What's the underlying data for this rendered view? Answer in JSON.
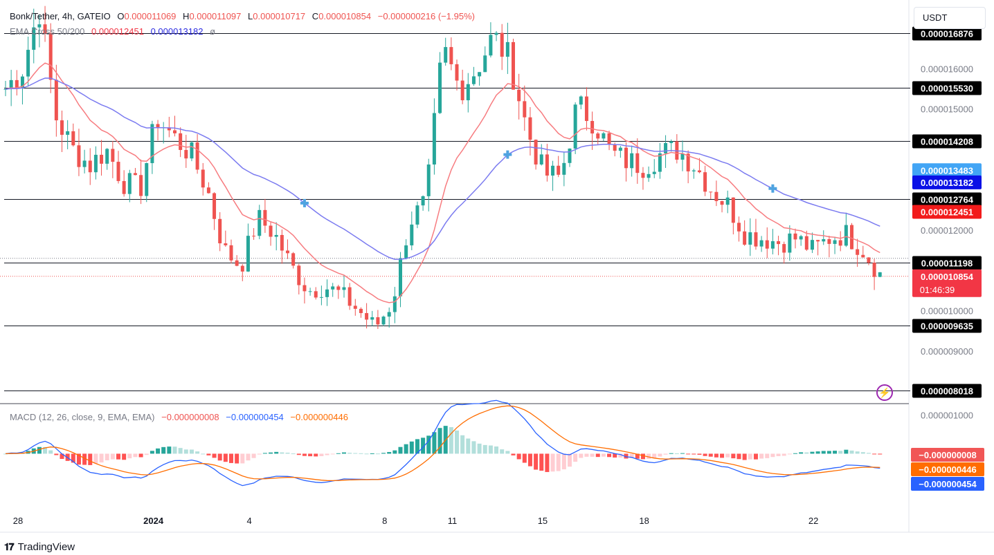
{
  "header": {
    "symbol": "Bonk/Tether, 4h, GATEIO",
    "open_label": "O",
    "open": "0.000011069",
    "high_label": "H",
    "high": "0.000011097",
    "low_label": "L",
    "low": "0.000010717",
    "close_label": "C",
    "close": "0.000010854",
    "change": "−0.000000216 (−1.95%)",
    "ema_label": "EMA Cross 50/200",
    "ema50": "0.000012451",
    "ema200": "0.000013182",
    "ema_extra": "ø",
    "currency": "USDT"
  },
  "macd_legend": {
    "label": "MACD (12, 26, close, 9, EMA, EMA)",
    "hist": "−0.000000008",
    "macd": "−0.000000454",
    "signal": "−0.000000446"
  },
  "brand": "TradingView",
  "colors": {
    "up": "#26a69a",
    "down": "#ef5350",
    "ema50": "#f77c80",
    "ema200": "#7b7bf0",
    "macd": "#2962ff",
    "signal": "#ff6d00"
  },
  "chart_data": {
    "type": "candlestick",
    "price_axis_ticks": [
      "0.000016000",
      "0.000015000",
      "0.000012000",
      "0.000010000",
      "0.000009000"
    ],
    "price_axis_values": [
      1.6e-05,
      1.5e-05,
      1.2e-05,
      1e-05,
      9e-06
    ],
    "price_range": [
      7.7e-06,
      1.77e-05
    ],
    "horizontal_levels": [
      {
        "label": "0.000016876",
        "value": 1.6876e-05
      },
      {
        "label": "0.000015530",
        "value": 1.553e-05
      },
      {
        "label": "0.000014208",
        "value": 1.4208e-05
      },
      {
        "label": "0.000012764",
        "value": 1.2764e-05
      },
      {
        "label": "0.000011198",
        "value": 1.1198e-05
      },
      {
        "label": "0.000009635",
        "value": 9.635e-06
      },
      {
        "label": "0.000008018",
        "value": 8.018e-06
      }
    ],
    "price_labels": [
      {
        "label": "0.000013483",
        "value": 1.3483e-05,
        "color": "#42a5f5"
      },
      {
        "label": "0.000013182",
        "value": 1.3182e-05,
        "color": "#0a10e6"
      },
      {
        "label": "0.000012451",
        "value": 1.2451e-05,
        "color": "#f21b1b"
      }
    ],
    "last_price": {
      "label": "0.000010854",
      "value": 1.0854e-05,
      "countdown": "01:46:39"
    },
    "macd_axis": {
      "tick": "0.000001000",
      "tick_value": 1e-06,
      "range": [
        -1.5e-06,
        1.3e-06
      ]
    },
    "macd_labels": [
      {
        "label": "−0.000000008",
        "value": -8e-09,
        "color": "#f15656"
      },
      {
        "label": "−0.000000446",
        "value": -4.46e-07,
        "color": "#ff6d00"
      },
      {
        "label": "−0.000000454",
        "value": -4.54e-07,
        "color": "#2962ff"
      }
    ],
    "x_axis_labels": [
      "28",
      "2024",
      "4",
      "8",
      "11",
      "15",
      "18",
      "22"
    ],
    "x_axis_positions": [
      0,
      24,
      41,
      65,
      77,
      93,
      111,
      141
    ],
    "candle_count": 156,
    "cross_markers": [
      53,
      89,
      136
    ],
    "price_path": [
      1.55e-05,
      1.6e-05,
      1.75e-05,
      1.48e-05,
      1.4e-05,
      1.36e-05,
      1.4e-05,
      1.32e-05,
      1.3e-05,
      1.48e-05,
      1.43e-05,
      1.39e-05,
      1.3e-05,
      1.15e-05,
      1.11e-05,
      1.23e-05,
      1.19e-05,
      1.11e-05,
      1.05e-05,
      1.06e-05,
      1.04e-05,
      1e-05,
      9.6e-06,
      1.02e-05,
      1.22e-05,
      1.27e-05,
      1.65e-05,
      1.55e-05,
      1.6e-05,
      1.68e-05,
      1.62e-05,
      1.45e-05,
      1.34e-05,
      1.33e-05,
      1.51e-05,
      1.47e-05,
      1.39e-05,
      1.37e-05,
      1.36e-05,
      1.39e-05,
      1.4e-05,
      1.36e-05,
      1.3e-05,
      1.26e-05,
      1.19e-05,
      1.18e-05,
      1.17e-05,
      1.18e-05,
      1.15e-05,
      1.18e-05,
      1.19e-05,
      1.15e-05,
      1.09e-05
    ]
  }
}
